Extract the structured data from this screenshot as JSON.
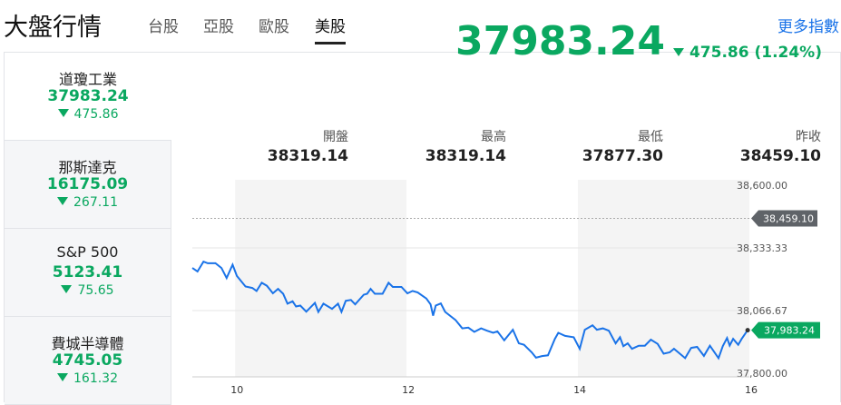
{
  "header": {
    "title": "大盤行情",
    "tabs": [
      "台股",
      "亞股",
      "歐股",
      "美股"
    ],
    "active_tab": "美股",
    "more_link": "更多指數"
  },
  "sidebar": {
    "items": [
      {
        "name": "道瓊工業",
        "price": "37983.24",
        "change": "475.86",
        "direction": "down",
        "active": true
      },
      {
        "name": "那斯達克",
        "price": "16175.09",
        "change": "267.11",
        "direction": "down"
      },
      {
        "name": "S&P 500",
        "price": "5123.41",
        "change": "75.65",
        "direction": "down"
      },
      {
        "name": "費城半導體",
        "price": "4745.05",
        "change": "161.32",
        "direction": "down"
      }
    ]
  },
  "main": {
    "price": "37983.24",
    "change": "475.86 (1.24%)",
    "direction": "down",
    "stats": [
      {
        "label": "開盤",
        "value": "38319.14"
      },
      {
        "label": "最高",
        "value": "38319.14"
      },
      {
        "label": "最低",
        "value": "37877.30"
      },
      {
        "label": "昨收",
        "value": "38459.10"
      }
    ]
  },
  "colors": {
    "down": "#0aa860",
    "line": "#1a73e8",
    "prev_close_tag": "#5f6368"
  },
  "chart_data": {
    "type": "line",
    "xlim": [
      9.5,
      16
    ],
    "ylim": [
      37800,
      38600
    ],
    "x_ticks": [
      "10",
      "12",
      "14",
      "16"
    ],
    "y_ticks": [
      "38,600.00",
      "38,333.33",
      "38,066.67",
      "37,800.00"
    ],
    "prev_close": {
      "value": 38459.1,
      "label": "38,459.10"
    },
    "last": {
      "value": 37983.24,
      "label": "37,983.24"
    },
    "shaded_bands": [
      [
        10,
        12
      ],
      [
        14,
        16
      ]
    ],
    "points": [
      [
        9.5,
        38248
      ],
      [
        9.56,
        38233
      ],
      [
        9.63,
        38275
      ],
      [
        9.68,
        38268
      ],
      [
        9.77,
        38268
      ],
      [
        9.84,
        38248
      ],
      [
        9.9,
        38205
      ],
      [
        9.97,
        38262
      ],
      [
        10.02,
        38214
      ],
      [
        10.12,
        38169
      ],
      [
        10.2,
        38163
      ],
      [
        10.25,
        38150
      ],
      [
        10.31,
        38185
      ],
      [
        10.37,
        38172
      ],
      [
        10.44,
        38140
      ],
      [
        10.5,
        38159
      ],
      [
        10.56,
        38138
      ],
      [
        10.61,
        38096
      ],
      [
        10.67,
        38106
      ],
      [
        10.71,
        38084
      ],
      [
        10.76,
        38088
      ],
      [
        10.83,
        38062
      ],
      [
        10.93,
        38099
      ],
      [
        10.97,
        38061
      ],
      [
        11.03,
        38096
      ],
      [
        11.13,
        38074
      ],
      [
        11.2,
        38096
      ],
      [
        11.24,
        38061
      ],
      [
        11.29,
        38108
      ],
      [
        11.35,
        38112
      ],
      [
        11.4,
        38093
      ],
      [
        11.5,
        38134
      ],
      [
        11.54,
        38138
      ],
      [
        11.58,
        38159
      ],
      [
        11.63,
        38138
      ],
      [
        11.72,
        38138
      ],
      [
        11.79,
        38185
      ],
      [
        11.84,
        38167
      ],
      [
        11.94,
        38167
      ],
      [
        12.01,
        38140
      ],
      [
        12.07,
        38150
      ],
      [
        12.13,
        38144
      ],
      [
        12.23,
        38118
      ],
      [
        12.28,
        38093
      ],
      [
        12.31,
        38045
      ],
      [
        12.34,
        38088
      ],
      [
        12.4,
        38097
      ],
      [
        12.45,
        38061
      ],
      [
        12.57,
        38027
      ],
      [
        12.65,
        37991
      ],
      [
        12.72,
        37994
      ],
      [
        12.79,
        37976
      ],
      [
        12.87,
        37991
      ],
      [
        12.94,
        37981
      ],
      [
        13.01,
        37972
      ],
      [
        13.06,
        37978
      ],
      [
        13.14,
        37940
      ],
      [
        13.24,
        37985
      ],
      [
        13.31,
        37927
      ],
      [
        13.37,
        37921
      ],
      [
        13.46,
        37889
      ],
      [
        13.51,
        37866
      ],
      [
        13.58,
        37873
      ],
      [
        13.65,
        37876
      ],
      [
        13.73,
        37946
      ],
      [
        13.77,
        37972
      ],
      [
        13.85,
        37959
      ],
      [
        13.95,
        37953
      ],
      [
        14.02,
        37904
      ],
      [
        14.08,
        37985
      ],
      [
        14.17,
        38004
      ],
      [
        14.22,
        37985
      ],
      [
        14.29,
        37991
      ],
      [
        14.36,
        37981
      ],
      [
        14.44,
        37927
      ],
      [
        14.49,
        37953
      ],
      [
        14.53,
        37915
      ],
      [
        14.58,
        37927
      ],
      [
        14.63,
        37904
      ],
      [
        14.71,
        37917
      ],
      [
        14.78,
        37917
      ],
      [
        14.85,
        37943
      ],
      [
        14.93,
        37925
      ],
      [
        15.0,
        37883
      ],
      [
        15.07,
        37889
      ],
      [
        15.12,
        37904
      ],
      [
        15.17,
        37889
      ],
      [
        15.25,
        37864
      ],
      [
        15.32,
        37908
      ],
      [
        15.39,
        37912
      ],
      [
        15.47,
        37874
      ],
      [
        15.54,
        37917
      ],
      [
        15.64,
        37864
      ],
      [
        15.69,
        37915
      ],
      [
        15.74,
        37950
      ],
      [
        15.77,
        37918
      ],
      [
        15.81,
        37946
      ],
      [
        15.87,
        37921
      ],
      [
        15.91,
        37946
      ],
      [
        15.98,
        37983
      ]
    ]
  }
}
